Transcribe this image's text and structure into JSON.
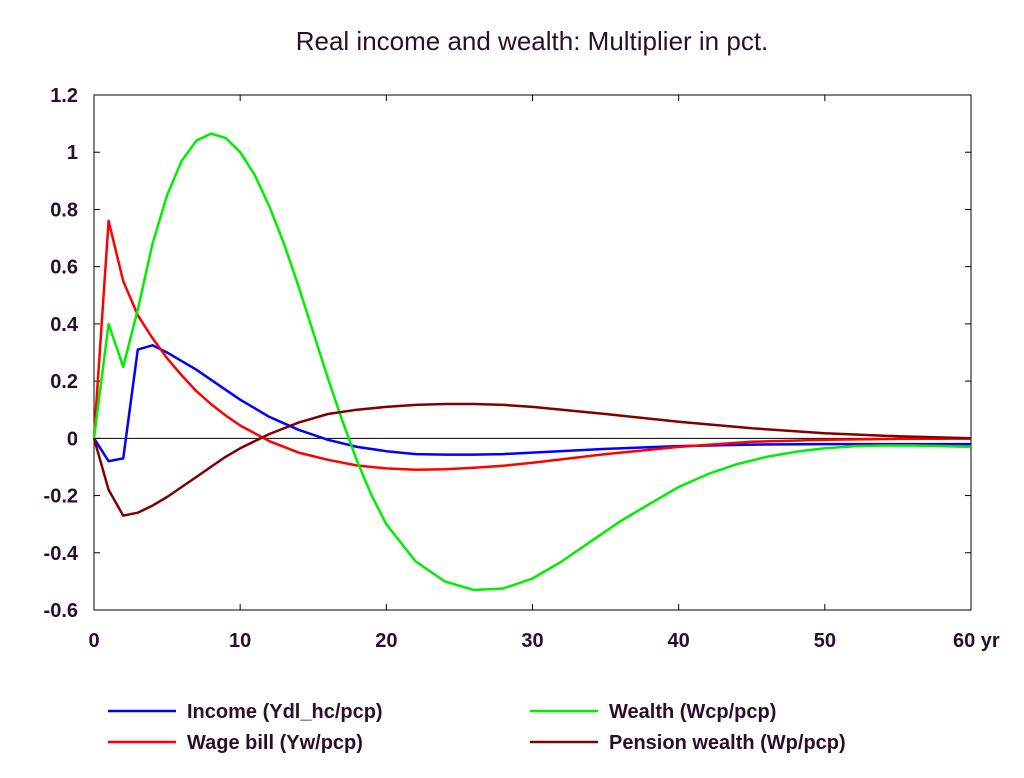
{
  "chart_data": {
    "type": "line",
    "title": "Real income and wealth: Multiplier in pct.",
    "xlabel": "",
    "ylabel": "",
    "x_unit_label": "yr",
    "xlim": [
      0,
      60
    ],
    "ylim": [
      -0.6,
      1.2
    ],
    "xticks": [
      0,
      10,
      20,
      30,
      40,
      50,
      60
    ],
    "xtick_labels": [
      "0",
      "10",
      "20",
      "30",
      "40",
      "50",
      "60 yr"
    ],
    "yticks": [
      -0.6,
      -0.4,
      -0.2,
      0,
      0.2,
      0.4,
      0.6,
      0.8,
      1,
      1.2
    ],
    "ytick_labels": [
      "-0.6",
      "-0.4",
      "-0.2",
      "0",
      "0.2",
      "0.4",
      "0.6",
      "0.8",
      "1",
      "1.2"
    ],
    "grid": false,
    "zero_line": true,
    "legend_position": "bottom",
    "series": [
      {
        "name": "Income (Ydl_hc/pcp)",
        "color": "#0000ff",
        "x": [
          0,
          1,
          2,
          3,
          4,
          5,
          6,
          7,
          8,
          9,
          10,
          12,
          14,
          16,
          18,
          20,
          22,
          24,
          26,
          28,
          30,
          35,
          40,
          45,
          50,
          55,
          60
        ],
        "y": [
          0,
          -0.08,
          -0.07,
          0.31,
          0.325,
          0.3,
          0.27,
          0.24,
          0.205,
          0.17,
          0.135,
          0.075,
          0.03,
          -0.005,
          -0.03,
          -0.045,
          -0.055,
          -0.057,
          -0.057,
          -0.055,
          -0.05,
          -0.037,
          -0.027,
          -0.022,
          -0.02,
          -0.02,
          -0.02
        ]
      },
      {
        "name": "Wage bill (Yw/pcp)",
        "color": "#ff0000",
        "x": [
          0,
          1,
          2,
          3,
          4,
          5,
          6,
          7,
          8,
          9,
          10,
          12,
          14,
          16,
          18,
          20,
          22,
          24,
          26,
          28,
          30,
          35,
          40,
          45,
          50,
          55,
          60
        ],
        "y": [
          0,
          0.76,
          0.55,
          0.43,
          0.35,
          0.28,
          0.22,
          0.165,
          0.12,
          0.08,
          0.045,
          -0.01,
          -0.05,
          -0.075,
          -0.095,
          -0.105,
          -0.11,
          -0.108,
          -0.103,
          -0.096,
          -0.085,
          -0.055,
          -0.03,
          -0.012,
          -0.005,
          -0.002,
          -0.001
        ]
      },
      {
        "name": "Wealth (Wcp/pcp)",
        "color": "#00ee00",
        "x": [
          0,
          1,
          2,
          3,
          4,
          5,
          6,
          7,
          8,
          9,
          10,
          11,
          12,
          13,
          14,
          15,
          16,
          17,
          18,
          19,
          20,
          22,
          24,
          26,
          28,
          30,
          32,
          34,
          36,
          38,
          40,
          42,
          44,
          46,
          48,
          50,
          52,
          54,
          56,
          58,
          60
        ],
        "y": [
          0,
          0.4,
          0.25,
          0.45,
          0.68,
          0.85,
          0.97,
          1.04,
          1.065,
          1.05,
          1.0,
          0.92,
          0.81,
          0.68,
          0.53,
          0.37,
          0.21,
          0.06,
          -0.08,
          -0.2,
          -0.3,
          -0.43,
          -0.5,
          -0.53,
          -0.525,
          -0.49,
          -0.43,
          -0.36,
          -0.29,
          -0.23,
          -0.17,
          -0.125,
          -0.09,
          -0.065,
          -0.047,
          -0.035,
          -0.028,
          -0.025,
          -0.025,
          -0.027,
          -0.03
        ]
      },
      {
        "name": "Pension wealth (Wp/pcp)",
        "color": "#800000",
        "x": [
          0,
          1,
          2,
          3,
          4,
          5,
          6,
          7,
          8,
          9,
          10,
          12,
          14,
          16,
          18,
          20,
          22,
          24,
          26,
          28,
          30,
          35,
          40,
          45,
          50,
          55,
          60
        ],
        "y": [
          0,
          -0.18,
          -0.27,
          -0.26,
          -0.235,
          -0.205,
          -0.17,
          -0.135,
          -0.1,
          -0.065,
          -0.035,
          0.015,
          0.055,
          0.085,
          0.1,
          0.11,
          0.117,
          0.12,
          0.12,
          0.117,
          0.11,
          0.085,
          0.058,
          0.035,
          0.018,
          0.007,
          0.0
        ]
      }
    ]
  }
}
